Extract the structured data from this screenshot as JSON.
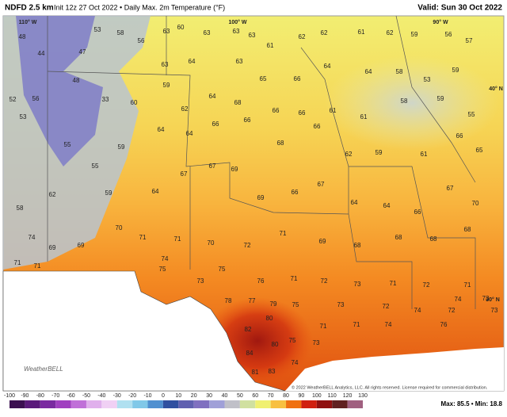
{
  "header": {
    "title": "NDFD 2.5 km",
    "subtitle": "Init 12z 27 Oct 2022 • Daily Max. 2m Temperature (°F)",
    "valid": "Valid: Sun 30 Oct 2022"
  },
  "map": {
    "grid_labels": [
      "110° W",
      "100° W",
      "90° W",
      "40° N",
      "30° N"
    ],
    "stations": [
      48,
      44,
      47,
      53,
      58,
      56,
      63,
      60,
      63,
      63,
      63,
      61,
      62,
      62,
      61,
      62,
      59,
      56,
      57,
      63,
      64,
      63,
      65,
      66,
      64,
      64,
      58,
      53,
      59,
      52,
      56,
      48,
      33,
      60,
      59,
      62,
      64,
      68,
      66,
      66,
      61,
      61,
      58,
      59,
      55,
      53,
      55,
      59,
      64,
      64,
      66,
      66,
      68,
      66,
      62,
      59,
      61,
      66,
      65,
      58,
      62,
      55,
      59,
      64,
      67,
      67,
      69,
      69,
      66,
      67,
      64,
      64,
      66,
      67,
      70,
      74,
      69,
      69,
      70,
      71,
      71,
      70,
      72,
      71,
      69,
      68,
      68,
      68,
      68,
      71,
      71,
      74,
      75,
      73,
      75,
      76,
      71,
      72,
      73,
      71,
      72,
      71,
      78,
      77,
      79,
      75,
      73,
      72,
      74,
      74,
      82,
      80,
      80,
      84,
      81,
      83,
      75,
      71,
      71,
      74,
      76,
      73,
      74,
      73,
      72,
      73
    ],
    "copyright": "© 2022 WeatherBELL Analytics, LLC. All rights reserved. License required for commercial distribution.",
    "logo": "WeatherBELL"
  },
  "colorbar": {
    "ticks": [
      -100,
      -90,
      -80,
      -70,
      -60,
      -50,
      -40,
      -30,
      -20,
      -10,
      0,
      10,
      20,
      30,
      40,
      50,
      60,
      70,
      80,
      90,
      100,
      110,
      120,
      130
    ],
    "colors": [
      "#3b0f50",
      "#5a1a7a",
      "#7a2aa0",
      "#a040c0",
      "#c070d8",
      "#e0b0ec",
      "#f0d0f4",
      "#b0e0f0",
      "#80c8e8",
      "#5090d0",
      "#3050a0",
      "#6060b0",
      "#8070c0",
      "#a0a0d8",
      "#c0c0c8",
      "#d0e0a0",
      "#f0f070",
      "#f8c040",
      "#f07010",
      "#d02010",
      "#901010",
      "#602020",
      "#a06080"
    ]
  },
  "stats": "Max: 85.5 • Min: 18.8"
}
